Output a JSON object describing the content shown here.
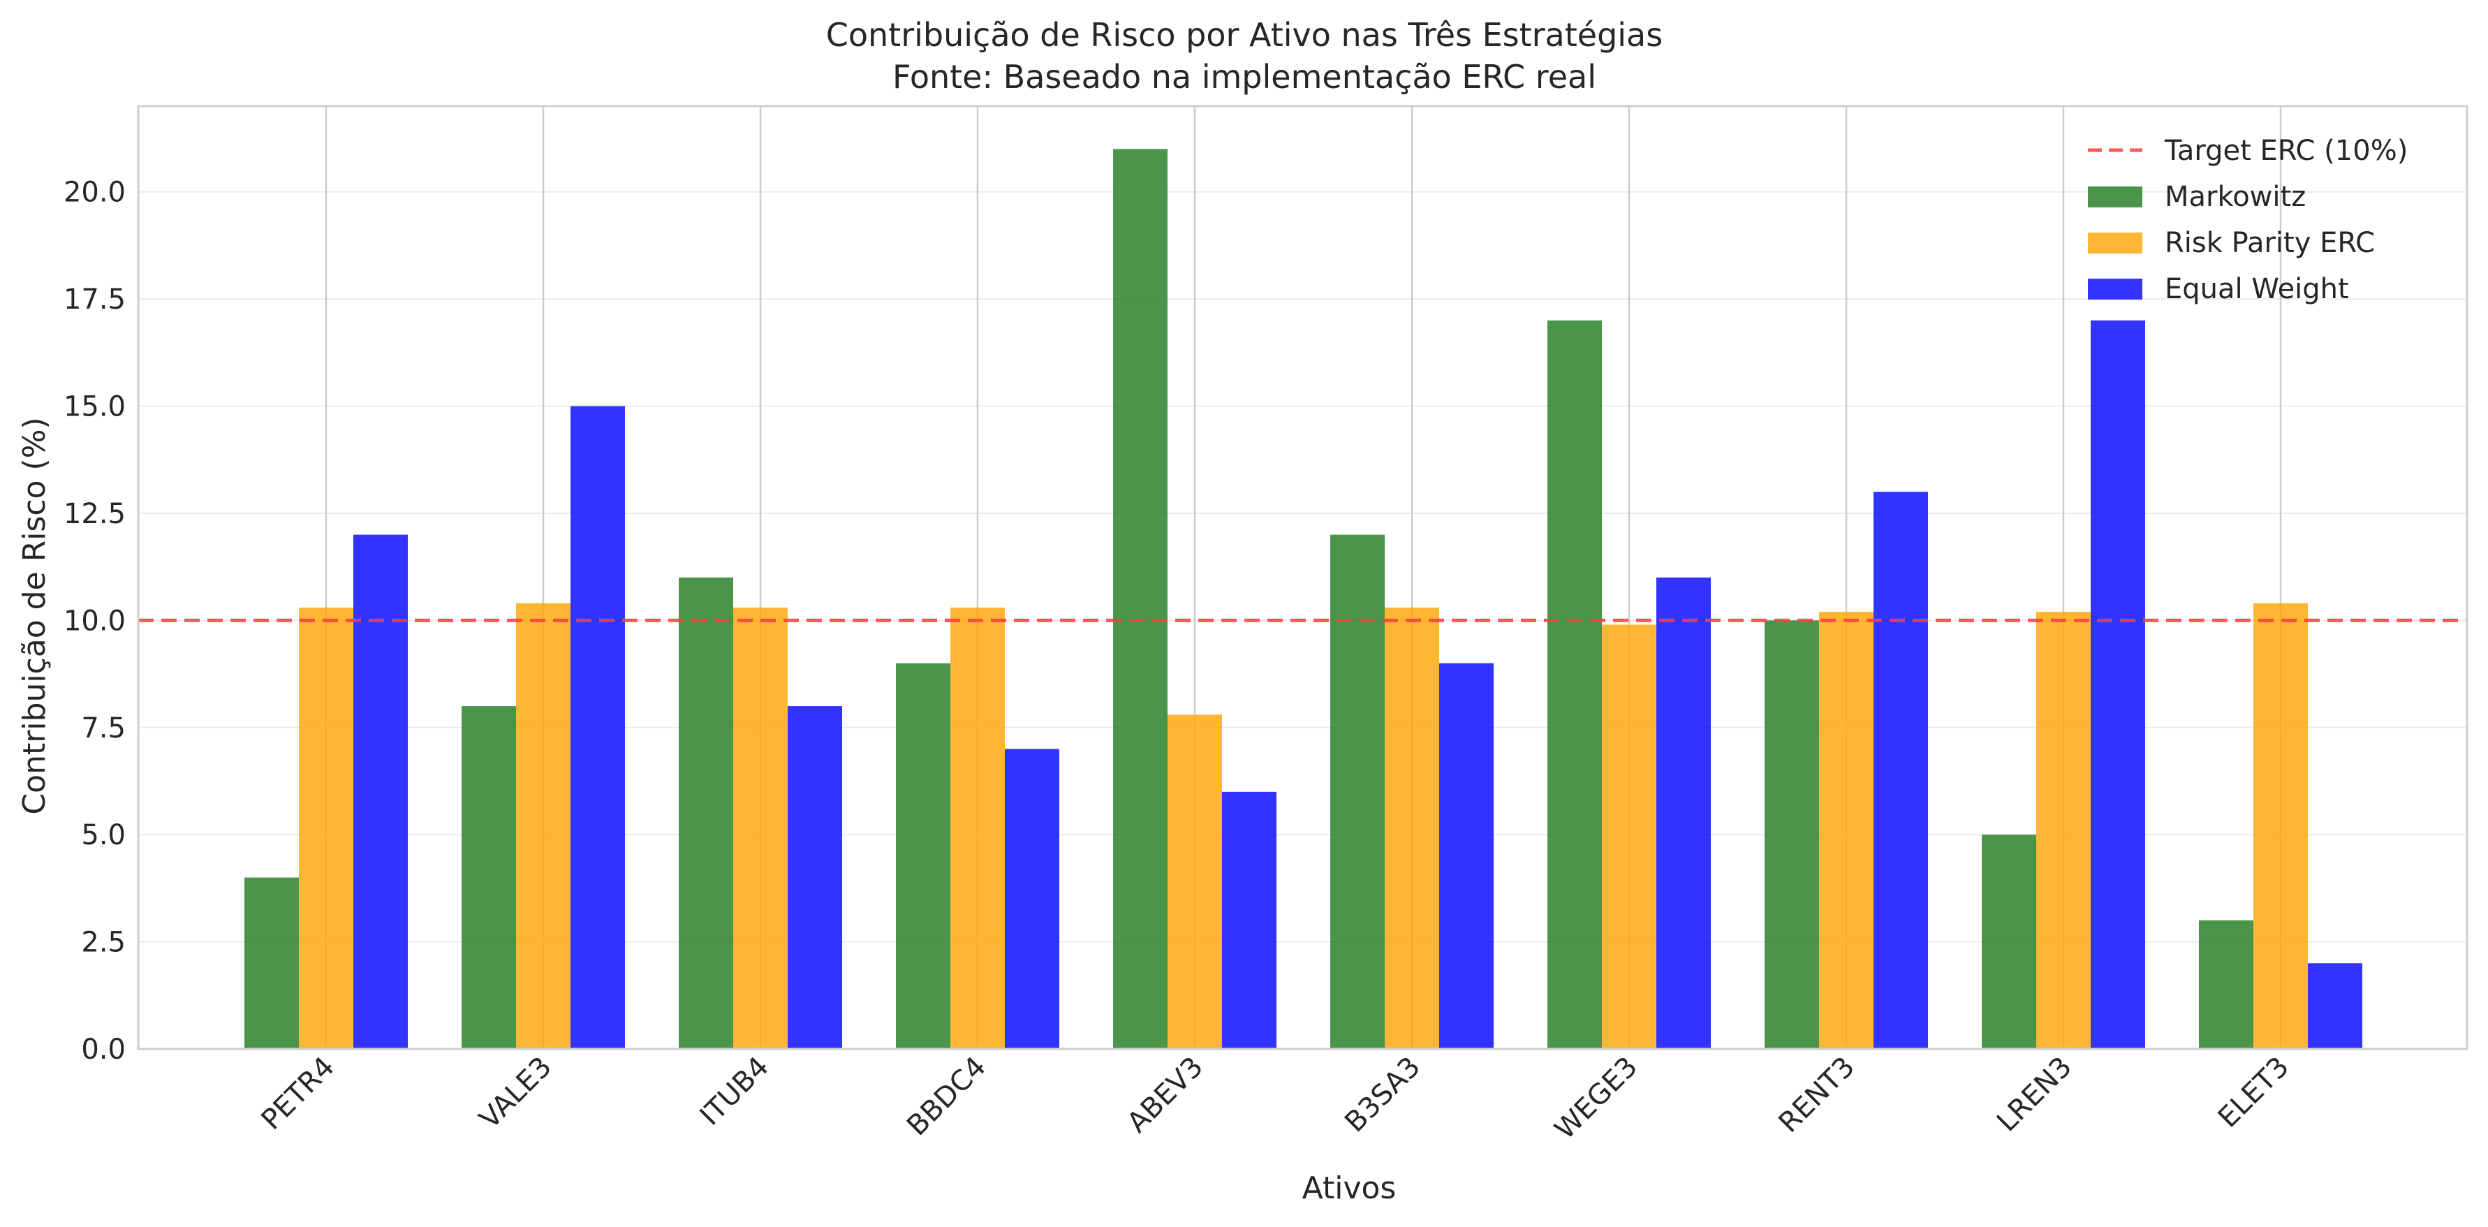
{
  "chart_data": {
    "type": "bar",
    "title": "Contribuição de Risco por Ativo nas Três Estratégias",
    "subtitle": "Fonte: Baseado na implementação ERC real",
    "xlabel": "Ativos",
    "ylabel": "Contribuição de Risco (%)",
    "ylim": [
      0,
      22
    ],
    "yticks": [
      "0.0",
      "2.5",
      "5.0",
      "7.5",
      "10.0",
      "12.5",
      "15.0",
      "17.5",
      "20.0"
    ],
    "categories": [
      "PETR4",
      "VALE3",
      "ITUB4",
      "BBDC4",
      "ABEV3",
      "B3SA3",
      "WEGE3",
      "RENT3",
      "LREN3",
      "ELET3"
    ],
    "series": [
      {
        "name": "Markowitz",
        "color": "#1e7b1e",
        "values": [
          4,
          8,
          11,
          9,
          21,
          12,
          17,
          10,
          5,
          3
        ]
      },
      {
        "name": "Risk Parity ERC",
        "color": "#ffa500",
        "values": [
          10.3,
          10.4,
          10.3,
          10.3,
          7.8,
          10.3,
          9.9,
          10.2,
          10.2,
          10.4
        ]
      },
      {
        "name": "Equal Weight",
        "color": "#0000ff",
        "values": [
          12,
          15,
          8,
          7,
          6,
          9,
          11,
          13,
          17,
          2
        ]
      }
    ],
    "reference_line": {
      "name": "Target ERC (10%)",
      "value": 10,
      "color": "#ff3b3b",
      "style": "dashed"
    },
    "grid": true,
    "legend": "top-right"
  }
}
